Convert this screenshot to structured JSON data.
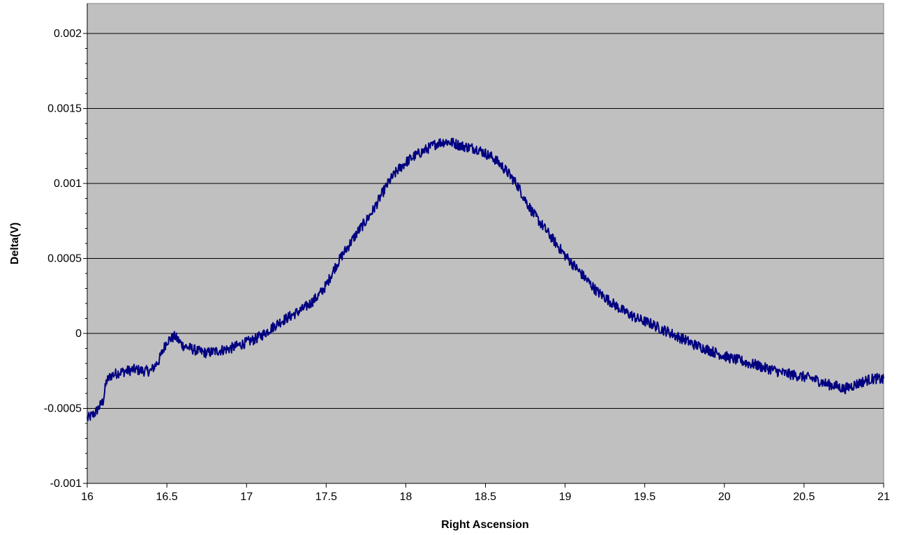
{
  "chart_data": {
    "type": "line",
    "title": "",
    "xlabel": "Right Ascension",
    "ylabel": "Delta(V)",
    "xlim": [
      16,
      21
    ],
    "ylim": [
      -0.001,
      0.0022
    ],
    "x_ticks": [
      16,
      16.5,
      17,
      17.5,
      18,
      18.5,
      19,
      19.5,
      20,
      20.5,
      21
    ],
    "x_tick_labels": [
      "16",
      "16.5",
      "17",
      "17.5",
      "18",
      "18.5",
      "19",
      "19.5",
      "20",
      "20.5",
      "21"
    ],
    "y_ticks": [
      -0.001,
      -0.0005,
      0,
      0.0005,
      0.001,
      0.0015,
      0.002
    ],
    "y_tick_labels": [
      "-0.001",
      "-0.0005",
      "0",
      "0.0005",
      "0.001",
      "0.0015",
      "0.002"
    ],
    "grid": "horizontal",
    "plot_background": "#C0C0C0",
    "series": [
      {
        "color": "#000080",
        "x": [
          16.0,
          16.05,
          16.1,
          16.12,
          16.15,
          16.2,
          16.25,
          16.3,
          16.35,
          16.4,
          16.45,
          16.5,
          16.55,
          16.6,
          16.65,
          16.7,
          16.75,
          16.8,
          16.85,
          16.9,
          16.95,
          17.0,
          17.05,
          17.1,
          17.15,
          17.2,
          17.25,
          17.3,
          17.35,
          17.4,
          17.45,
          17.5,
          17.55,
          17.6,
          17.65,
          17.7,
          17.75,
          17.8,
          17.85,
          17.9,
          17.95,
          18.0,
          18.05,
          18.1,
          18.15,
          18.2,
          18.25,
          18.3,
          18.35,
          18.4,
          18.45,
          18.5,
          18.55,
          18.6,
          18.65,
          18.7,
          18.75,
          18.8,
          18.85,
          18.9,
          18.95,
          19.0,
          19.05,
          19.1,
          19.15,
          19.2,
          19.25,
          19.3,
          19.35,
          19.4,
          19.45,
          19.5,
          19.55,
          19.6,
          19.65,
          19.7,
          19.75,
          19.8,
          19.85,
          19.9,
          19.95,
          20.0,
          20.05,
          20.1,
          20.15,
          20.2,
          20.25,
          20.3,
          20.35,
          20.4,
          20.45,
          20.5,
          20.55,
          20.6,
          20.65,
          20.7,
          20.75,
          20.8,
          20.85,
          20.9,
          20.95,
          21.0
        ],
        "values": [
          -0.00057,
          -0.00053,
          -0.00045,
          -0.00032,
          -0.00028,
          -0.00026,
          -0.00025,
          -0.00024,
          -0.00025,
          -0.00025,
          -0.00018,
          -5e-05,
          -2e-05,
          -8e-05,
          -0.0001,
          -0.00012,
          -0.00013,
          -0.00012,
          -0.00011,
          -0.0001,
          -8e-05,
          -6e-05,
          -4e-05,
          -1e-05,
          3e-05,
          7e-05,
          0.0001,
          0.00013,
          0.00016,
          0.0002,
          0.00025,
          0.00032,
          0.00043,
          0.00052,
          0.0006,
          0.00068,
          0.00075,
          0.00083,
          0.00093,
          0.00102,
          0.00109,
          0.00114,
          0.00118,
          0.00121,
          0.00124,
          0.00127,
          0.00128,
          0.00127,
          0.00125,
          0.00124,
          0.00123,
          0.0012,
          0.00117,
          0.00112,
          0.00106,
          0.00099,
          0.00089,
          0.0008,
          0.00073,
          0.00066,
          0.00059,
          0.00052,
          0.00046,
          0.0004,
          0.00034,
          0.00028,
          0.00024,
          0.0002,
          0.00016,
          0.00013,
          0.0001,
          8e-05,
          6e-05,
          3e-05,
          1e-05,
          -2e-05,
          -4e-05,
          -7e-05,
          -9e-05,
          -0.00011,
          -0.00013,
          -0.00015,
          -0.00017,
          -0.00018,
          -0.0002,
          -0.00021,
          -0.00023,
          -0.00024,
          -0.00026,
          -0.00027,
          -0.00028,
          -0.00029,
          -0.0003,
          -0.00032,
          -0.00034,
          -0.00035,
          -0.00037,
          -0.00035,
          -0.00033,
          -0.00031,
          -0.0003,
          -0.00031
        ]
      }
    ]
  }
}
